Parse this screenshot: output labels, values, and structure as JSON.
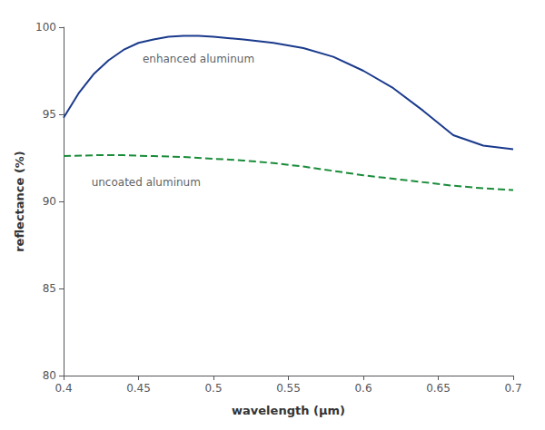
{
  "chart_data": {
    "type": "line",
    "xlabel": "wavelength (μm)",
    "ylabel": "reflectance (%)",
    "xlim": [
      0.4,
      0.7
    ],
    "ylim": [
      80,
      100
    ],
    "xticks": [
      0.4,
      0.45,
      0.5,
      0.55,
      0.6,
      0.65,
      0.7
    ],
    "yticks": [
      80,
      85,
      90,
      95,
      100
    ],
    "grid": false,
    "series": [
      {
        "color": "#1a3a8c",
        "line_style": "solid",
        "x": [
          0.4,
          0.41,
          0.42,
          0.43,
          0.44,
          0.45,
          0.46,
          0.47,
          0.48,
          0.49,
          0.5,
          0.52,
          0.54,
          0.56,
          0.58,
          0.6,
          0.62,
          0.64,
          0.66,
          0.68,
          0.7
        ],
        "values": [
          94.8,
          96.2,
          97.3,
          98.1,
          98.7,
          99.1,
          99.3,
          99.45,
          99.5,
          99.5,
          99.45,
          99.3,
          99.1,
          98.8,
          98.3,
          97.5,
          96.5,
          95.2,
          93.8,
          93.2,
          93.0
        ]
      },
      {
        "color": "#1a8c3a",
        "line_style": "dashed",
        "x": [
          0.4,
          0.42,
          0.44,
          0.46,
          0.48,
          0.5,
          0.52,
          0.54,
          0.56,
          0.58,
          0.6,
          0.62,
          0.64,
          0.66,
          0.68,
          0.7
        ],
        "values": [
          92.6,
          92.65,
          92.65,
          92.6,
          92.55,
          92.45,
          92.35,
          92.2,
          92.0,
          91.75,
          91.5,
          91.3,
          91.1,
          90.9,
          90.75,
          90.65
        ]
      }
    ],
    "annotations": [
      {
        "text": "enhanced aluminum",
        "x": 0.49,
        "y": 98.2
      },
      {
        "text": "uncoated aluminum",
        "x": 0.455,
        "y": 91.1
      }
    ]
  }
}
